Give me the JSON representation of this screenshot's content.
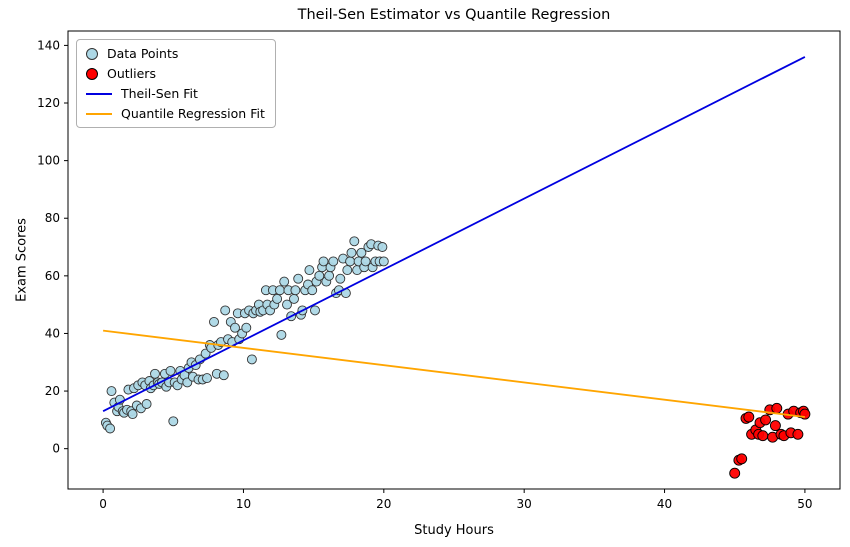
{
  "chart_data": {
    "type": "scatter",
    "title": "Theil-Sen Estimator vs Quantile Regression",
    "xlabel": "Study Hours",
    "ylabel": "Exam Scores",
    "xlim": [
      -2.5,
      52.5
    ],
    "ylim": [
      -14,
      145
    ],
    "x_ticks": [
      0,
      10,
      20,
      30,
      40,
      50
    ],
    "y_ticks": [
      0,
      20,
      40,
      60,
      80,
      100,
      120,
      140
    ],
    "grid": false,
    "legend_position": "upper left",
    "series": [
      {
        "name": "Data Points",
        "kind": "scatter",
        "color": "#ADD8E6",
        "edge": "#333333",
        "marker_radius": 4.5,
        "points": [
          [
            0.2,
            9
          ],
          [
            0.3,
            8
          ],
          [
            0.5,
            7
          ],
          [
            0.6,
            20
          ],
          [
            0.8,
            16
          ],
          [
            1.0,
            13
          ],
          [
            1.1,
            14.5
          ],
          [
            1.2,
            17
          ],
          [
            1.4,
            13
          ],
          [
            1.5,
            12.5
          ],
          [
            1.7,
            13.5
          ],
          [
            1.8,
            20.5
          ],
          [
            2.0,
            13
          ],
          [
            2.1,
            12
          ],
          [
            2.2,
            21
          ],
          [
            2.4,
            15
          ],
          [
            2.5,
            22
          ],
          [
            2.7,
            14
          ],
          [
            2.8,
            23
          ],
          [
            3.0,
            22
          ],
          [
            3.1,
            15.5
          ],
          [
            3.3,
            23.5
          ],
          [
            3.4,
            21
          ],
          [
            3.6,
            22
          ],
          [
            3.7,
            26
          ],
          [
            3.9,
            23
          ],
          [
            4.0,
            22.5
          ],
          [
            4.2,
            23
          ],
          [
            4.4,
            26
          ],
          [
            4.5,
            21.5
          ],
          [
            4.7,
            23
          ],
          [
            4.8,
            27
          ],
          [
            5.0,
            9.5
          ],
          [
            5.1,
            23
          ],
          [
            5.3,
            22
          ],
          [
            5.5,
            27
          ],
          [
            5.6,
            24
          ],
          [
            5.8,
            25.5
          ],
          [
            6.0,
            23
          ],
          [
            6.1,
            28
          ],
          [
            6.3,
            30
          ],
          [
            6.4,
            25
          ],
          [
            6.6,
            29
          ],
          [
            6.8,
            24
          ],
          [
            6.9,
            31
          ],
          [
            7.1,
            24
          ],
          [
            7.3,
            33
          ],
          [
            7.4,
            24.5
          ],
          [
            7.6,
            36
          ],
          [
            7.7,
            35
          ],
          [
            7.9,
            44
          ],
          [
            8.1,
            26
          ],
          [
            8.2,
            36
          ],
          [
            8.4,
            37
          ],
          [
            8.6,
            25.5
          ],
          [
            8.7,
            48
          ],
          [
            8.9,
            38
          ],
          [
            9.1,
            44
          ],
          [
            9.2,
            37
          ],
          [
            9.4,
            42
          ],
          [
            9.6,
            47
          ],
          [
            9.7,
            38
          ],
          [
            9.9,
            40
          ],
          [
            10.1,
            47
          ],
          [
            10.2,
            42
          ],
          [
            10.4,
            48
          ],
          [
            10.6,
            31
          ],
          [
            10.7,
            47
          ],
          [
            10.9,
            48
          ],
          [
            11.1,
            50
          ],
          [
            11.2,
            47.5
          ],
          [
            11.4,
            48
          ],
          [
            11.6,
            55
          ],
          [
            11.7,
            50
          ],
          [
            11.9,
            48
          ],
          [
            12.1,
            55
          ],
          [
            12.2,
            50
          ],
          [
            12.4,
            52
          ],
          [
            12.6,
            55
          ],
          [
            12.7,
            39.5
          ],
          [
            12.9,
            58
          ],
          [
            13.1,
            50
          ],
          [
            13.2,
            55
          ],
          [
            13.4,
            46
          ],
          [
            13.6,
            52
          ],
          [
            13.7,
            55
          ],
          [
            13.9,
            59
          ],
          [
            14.1,
            46.5
          ],
          [
            14.2,
            48
          ],
          [
            14.4,
            55
          ],
          [
            14.6,
            57
          ],
          [
            14.7,
            62
          ],
          [
            14.9,
            55
          ],
          [
            15.1,
            48
          ],
          [
            15.2,
            58
          ],
          [
            15.4,
            60
          ],
          [
            15.6,
            63
          ],
          [
            15.7,
            65
          ],
          [
            15.9,
            58
          ],
          [
            16.1,
            60
          ],
          [
            16.2,
            63
          ],
          [
            16.4,
            65
          ],
          [
            16.6,
            54
          ],
          [
            16.8,
            55
          ],
          [
            16.9,
            59
          ],
          [
            17.1,
            66
          ],
          [
            17.3,
            54
          ],
          [
            17.4,
            62
          ],
          [
            17.6,
            65
          ],
          [
            17.7,
            68
          ],
          [
            17.9,
            72
          ],
          [
            18.1,
            62
          ],
          [
            18.2,
            65
          ],
          [
            18.4,
            68
          ],
          [
            18.6,
            63
          ],
          [
            18.7,
            65
          ],
          [
            18.9,
            70
          ],
          [
            19.1,
            71
          ],
          [
            19.2,
            63
          ],
          [
            19.4,
            65
          ],
          [
            19.6,
            70.5
          ],
          [
            19.7,
            65
          ],
          [
            19.9,
            70
          ],
          [
            20.0,
            65
          ]
        ]
      },
      {
        "name": "Outliers",
        "kind": "scatter",
        "color": "#FF0000",
        "edge": "#000000",
        "marker_radius": 5,
        "points": [
          [
            45.0,
            -8.5
          ],
          [
            45.3,
            -4
          ],
          [
            45.5,
            -3.5
          ],
          [
            45.8,
            10.5
          ],
          [
            46.0,
            11
          ],
          [
            46.2,
            5
          ],
          [
            46.5,
            6.5
          ],
          [
            46.7,
            5
          ],
          [
            46.8,
            9
          ],
          [
            47.0,
            4.5
          ],
          [
            47.2,
            10
          ],
          [
            47.5,
            13.5
          ],
          [
            47.7,
            4
          ],
          [
            47.9,
            8
          ],
          [
            48.0,
            14
          ],
          [
            48.3,
            5
          ],
          [
            48.5,
            4.5
          ],
          [
            48.8,
            12
          ],
          [
            49.0,
            5.5
          ],
          [
            49.2,
            13
          ],
          [
            49.5,
            5
          ],
          [
            49.7,
            12.5
          ],
          [
            49.9,
            13
          ],
          [
            50.0,
            12
          ]
        ]
      },
      {
        "name": "Theil-Sen Fit",
        "kind": "line",
        "color": "#0000E0",
        "x": [
          0,
          50
        ],
        "y": [
          13,
          136
        ]
      },
      {
        "name": "Quantile Regression Fit",
        "kind": "line",
        "color": "#FFA500",
        "x": [
          0,
          50
        ],
        "y": [
          41,
          11
        ]
      }
    ]
  }
}
